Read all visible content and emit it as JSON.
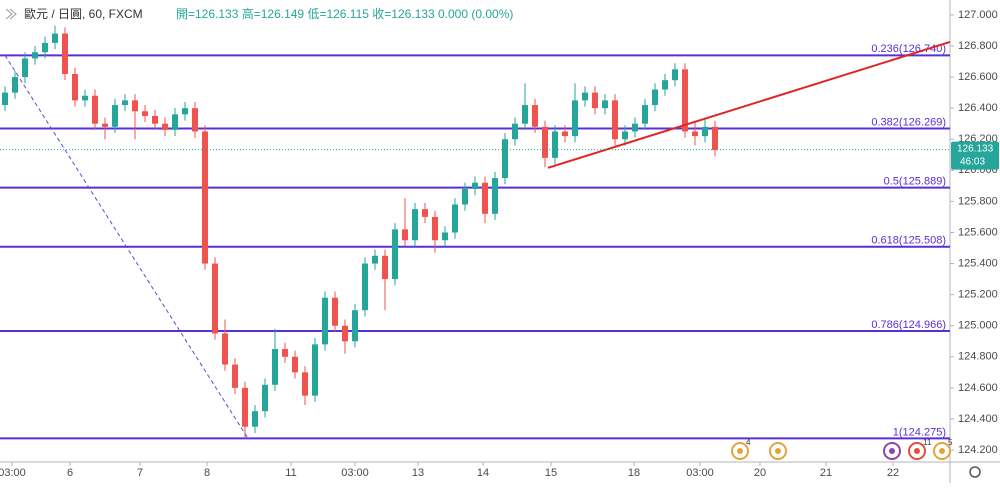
{
  "chart_data": {
    "type": "candlestick",
    "symbol": "歐元 / 日圓, 60, FXCM",
    "ohlc_text": "開=126.133 高=126.149 低=126.115 收=126.133 0.000 (0.00%)",
    "up_color": "#26a69a",
    "down_color": "#ef5350",
    "open": [
      126.42,
      126.5,
      126.6,
      126.72,
      126.76,
      126.82,
      126.88,
      126.62,
      126.45,
      126.48,
      126.3,
      126.28,
      126.42,
      126.45,
      126.38,
      126.35,
      126.3,
      126.26,
      126.36,
      126.4,
      126.25,
      125.4,
      124.95,
      124.75,
      124.6,
      124.35,
      124.45,
      124.62,
      124.85,
      124.8,
      124.7,
      124.55,
      124.88,
      125.18,
      125.0,
      124.9,
      125.1,
      125.4,
      125.45,
      125.3,
      125.62,
      125.55,
      125.75,
      125.7,
      125.55,
      125.6,
      125.78,
      125.88,
      125.92,
      125.72,
      125.95,
      126.2,
      126.3,
      126.42,
      126.28,
      126.08,
      126.25,
      126.22,
      126.45,
      126.5,
      126.4,
      126.45,
      126.2,
      126.25,
      126.3,
      126.42,
      126.52,
      126.58,
      126.65,
      126.25,
      126.22,
      126.28
    ],
    "high": [
      126.54,
      126.64,
      126.76,
      126.8,
      126.86,
      126.93,
      126.92,
      126.66,
      126.52,
      126.52,
      126.34,
      126.46,
      126.49,
      126.49,
      126.42,
      126.39,
      126.34,
      126.4,
      126.44,
      126.44,
      126.29,
      125.44,
      125.04,
      124.79,
      124.64,
      124.49,
      124.66,
      124.98,
      124.89,
      124.84,
      124.74,
      124.92,
      125.22,
      125.22,
      125.04,
      125.14,
      125.44,
      125.49,
      125.49,
      125.66,
      125.82,
      125.79,
      125.79,
      125.74,
      125.64,
      125.82,
      125.92,
      125.96,
      125.96,
      125.99,
      126.24,
      126.34,
      126.56,
      126.46,
      126.32,
      126.29,
      126.29,
      126.56,
      126.54,
      126.54,
      126.49,
      126.49,
      126.29,
      126.34,
      126.46,
      126.56,
      126.62,
      126.69,
      126.69,
      126.32,
      126.34,
      126.32
    ],
    "low": [
      126.38,
      126.46,
      126.56,
      126.68,
      126.72,
      126.78,
      126.58,
      126.41,
      126.41,
      126.26,
      126.2,
      126.24,
      126.38,
      126.2,
      126.31,
      126.26,
      126.22,
      126.22,
      126.32,
      126.21,
      125.36,
      124.91,
      124.71,
      124.56,
      124.275,
      124.31,
      124.41,
      124.58,
      124.76,
      124.66,
      124.49,
      124.51,
      124.84,
      124.96,
      124.82,
      124.86,
      125.06,
      125.36,
      125.1,
      125.26,
      125.51,
      125.51,
      125.66,
      125.47,
      125.51,
      125.56,
      125.74,
      125.84,
      125.66,
      125.68,
      125.91,
      126.16,
      126.26,
      126.24,
      126.02,
      126.04,
      126.18,
      126.18,
      126.41,
      126.36,
      126.36,
      126.16,
      126.16,
      126.21,
      126.26,
      126.38,
      126.48,
      126.54,
      126.21,
      126.16,
      126.18,
      126.09
    ],
    "close": [
      126.5,
      126.6,
      126.72,
      126.76,
      126.82,
      126.88,
      126.62,
      126.45,
      126.48,
      126.3,
      126.28,
      126.42,
      126.45,
      126.38,
      126.35,
      126.3,
      126.26,
      126.36,
      126.4,
      126.25,
      125.4,
      124.95,
      124.75,
      124.6,
      124.35,
      124.45,
      124.62,
      124.85,
      124.8,
      124.7,
      124.55,
      124.88,
      125.18,
      125.0,
      124.9,
      125.1,
      125.4,
      125.45,
      125.3,
      125.62,
      125.55,
      125.75,
      125.7,
      125.55,
      125.6,
      125.78,
      125.88,
      125.92,
      125.72,
      125.95,
      126.2,
      126.3,
      126.42,
      126.28,
      126.08,
      126.25,
      126.22,
      126.45,
      126.5,
      126.4,
      126.45,
      126.2,
      126.25,
      126.3,
      126.42,
      126.52,
      126.58,
      126.65,
      126.25,
      126.22,
      126.28,
      126.13
    ],
    "xlim": [
      0,
      95
    ],
    "xticks": [
      {
        "value": 1.2,
        "label": "03:00"
      },
      {
        "value": 7,
        "label": "6"
      },
      {
        "value": 14,
        "label": "7"
      },
      {
        "value": 20.7,
        "label": "8"
      },
      {
        "value": 29.1,
        "label": "11"
      },
      {
        "value": 35.5,
        "label": "03:00"
      },
      {
        "value": 41.8,
        "label": "13"
      },
      {
        "value": 48.3,
        "label": "14"
      },
      {
        "value": 55.1,
        "label": "15"
      },
      {
        "value": 63.4,
        "label": "18"
      },
      {
        "value": 70,
        "label": "03:00"
      },
      {
        "value": 76,
        "label": "20"
      },
      {
        "value": 82.6,
        "label": "21"
      },
      {
        "value": 89.3,
        "label": "22"
      }
    ],
    "ylim": [
      124.123,
      127.096
    ],
    "yticks": [
      {
        "value": 124.2,
        "label": "124.200"
      },
      {
        "value": 124.4,
        "label": "124.400"
      },
      {
        "value": 124.6,
        "label": "124.600"
      },
      {
        "value": 124.8,
        "label": "124.800"
      },
      {
        "value": 125.0,
        "label": "125.000"
      },
      {
        "value": 125.2,
        "label": "125.200"
      },
      {
        "value": 125.4,
        "label": "125.400"
      },
      {
        "value": 125.6,
        "label": "125.600"
      },
      {
        "value": 125.8,
        "label": "125.800"
      },
      {
        "value": 126.0,
        "label": "126.000"
      },
      {
        "value": 126.2,
        "label": "126.200"
      },
      {
        "value": 126.4,
        "label": "126.400"
      },
      {
        "value": 126.6,
        "label": "126.600"
      },
      {
        "value": 126.8,
        "label": "126.800"
      },
      {
        "value": 127.0,
        "label": "127.000"
      }
    ],
    "fib_color": "#5a2fd6",
    "fib_levels": [
      {
        "price": 126.74,
        "label": "0.236(126.740)"
      },
      {
        "price": 126.269,
        "label": "0.382(126.269)"
      },
      {
        "price": 125.889,
        "label": "0.5(125.889)"
      },
      {
        "price": 125.508,
        "label": "0.618(125.508)"
      },
      {
        "price": 124.966,
        "label": "0.786(124.966)"
      },
      {
        "price": 124.275,
        "label": "1(124.275)"
      }
    ],
    "trendlines": [
      {
        "x": [
          0.5,
          24.8
        ],
        "y": [
          126.74,
          124.275
        ],
        "color": "#5b4bd6",
        "dashed": true
      },
      {
        "x": [
          54.8,
          95
        ],
        "y": [
          126.016,
          126.826
        ],
        "color": "#e02424",
        "dashed": false
      }
    ],
    "last_price": {
      "value": 126.133,
      "label": "126.133"
    },
    "countdown": "46:03",
    "event_badges": [
      {
        "x": 74,
        "label": "4",
        "color": "#e6a23c"
      },
      {
        "x": 77.8,
        "label": null,
        "color": "#e6a23c"
      },
      {
        "x": 89.2,
        "label": null,
        "color": "#8e44ad"
      },
      {
        "x": 91.7,
        "label": "11",
        "color": "#e74c3c"
      },
      {
        "x": 94.2,
        "label": "5",
        "color": "#e6a23c"
      }
    ]
  }
}
